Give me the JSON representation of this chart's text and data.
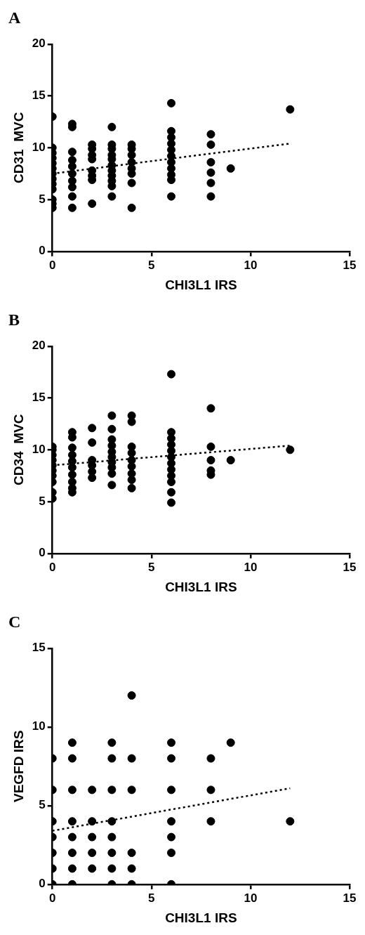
{
  "chart_data": [
    {
      "type": "scatter",
      "title": "A",
      "xlabel": "CHI3L1 IRS",
      "ylabel": "CD31  MVC",
      "xlim": [
        0,
        15
      ],
      "xticks": [
        0,
        5,
        10,
        15
      ],
      "ylim": [
        0,
        20
      ],
      "yticks": [
        0,
        5,
        10,
        15,
        20
      ],
      "grid": false,
      "legend": false,
      "marker": "circle",
      "series": [
        {
          "type": "scatter",
          "color": "#000000",
          "x": [
            0,
            0,
            0,
            0,
            0,
            0,
            0,
            0,
            0,
            0,
            0,
            0,
            0,
            1,
            1,
            1,
            1,
            1,
            1,
            1,
            1,
            1,
            1,
            2,
            2,
            2,
            2,
            2,
            2,
            2,
            2,
            3,
            3,
            3,
            3,
            3,
            3,
            3,
            3,
            3,
            3,
            3,
            4,
            4,
            4,
            4,
            4,
            4,
            4,
            4,
            6,
            6,
            6,
            6,
            6,
            6,
            6,
            6,
            6,
            6,
            6,
            8,
            8,
            8,
            8,
            8,
            8,
            9,
            12
          ],
          "values": [
            4.2,
            4.6,
            5,
            6,
            6.5,
            7,
            7.5,
            8,
            8.5,
            9,
            9.5,
            10,
            13,
            4.2,
            5.3,
            6.2,
            6.8,
            7.5,
            8.2,
            8.8,
            9.6,
            12,
            12.3,
            4.6,
            6.9,
            7.3,
            7.8,
            8.9,
            9.3,
            9.9,
            10.3,
            5.3,
            6.3,
            6.8,
            7.3,
            7.8,
            8.3,
            8.9,
            9.3,
            9.9,
            10.3,
            12,
            4.2,
            6.6,
            7.5,
            8,
            8.6,
            9.3,
            9.9,
            10.3,
            5.3,
            6.9,
            7.4,
            8,
            8.6,
            9.2,
            9.8,
            10.4,
            11,
            11.6,
            14.3,
            5.3,
            6.6,
            7.6,
            8.6,
            10.3,
            11.3,
            8,
            13.7
          ]
        },
        {
          "type": "line",
          "color": "#000000",
          "line_style": "dotted",
          "marker": "none",
          "x": [
            0,
            12
          ],
          "values": [
            7.5,
            10.4
          ]
        }
      ]
    },
    {
      "type": "scatter",
      "title": "B",
      "xlabel": "CHI3L1 IRS",
      "ylabel": "CD34  MVC",
      "xlim": [
        0,
        15
      ],
      "xticks": [
        0,
        5,
        10,
        15
      ],
      "ylim": [
        0,
        20
      ],
      "yticks": [
        0,
        5,
        10,
        15,
        20
      ],
      "grid": false,
      "legend": false,
      "marker": "circle",
      "series": [
        {
          "type": "scatter",
          "color": "#000000",
          "x": [
            0,
            0,
            0,
            0,
            0,
            0,
            0,
            0,
            0,
            0,
            1,
            1,
            1,
            1,
            1,
            1,
            1,
            1,
            1,
            1,
            2,
            2,
            2,
            2,
            2,
            2,
            3,
            3,
            3,
            3,
            3,
            3,
            3,
            3,
            3,
            3,
            4,
            4,
            4,
            4,
            4,
            4,
            4,
            4,
            4,
            6,
            6,
            6,
            6,
            6,
            6,
            6,
            6,
            6,
            6,
            6,
            6,
            8,
            8,
            8,
            8,
            8,
            9,
            12
          ],
          "values": [
            5.3,
            5.9,
            6.9,
            7.5,
            8,
            8.5,
            9,
            9.5,
            10,
            10.3,
            5.9,
            6.3,
            6.9,
            7.6,
            8.3,
            8.9,
            9.5,
            10.2,
            11.2,
            11.7,
            7.3,
            7.9,
            8.5,
            9,
            10.7,
            12.1,
            6.6,
            7.7,
            8.3,
            8.8,
            9.3,
            9.8,
            10.4,
            11,
            12,
            13.3,
            6.3,
            7.1,
            7.7,
            8.4,
            9,
            9.7,
            10.3,
            12.7,
            13.3,
            4.9,
            5.9,
            6.9,
            7.5,
            8.1,
            8.7,
            9.3,
            9.9,
            10.5,
            11.1,
            11.7,
            17.3,
            7.6,
            8,
            9,
            10.3,
            14,
            9,
            10
          ]
        },
        {
          "type": "line",
          "color": "#000000",
          "line_style": "dotted",
          "marker": "none",
          "x": [
            0,
            12
          ],
          "values": [
            8.5,
            10.4
          ]
        }
      ]
    },
    {
      "type": "scatter",
      "title": "C",
      "xlabel": "CHI3L1 IRS",
      "ylabel": "VEGFD IRS",
      "xlim": [
        0,
        15
      ],
      "xticks": [
        0,
        5,
        10,
        15
      ],
      "ylim": [
        0,
        15
      ],
      "yticks": [
        0,
        5,
        10,
        15
      ],
      "grid": false,
      "legend": false,
      "marker": "circle",
      "series": [
        {
          "type": "scatter",
          "color": "#000000",
          "x": [
            0,
            0,
            0,
            0,
            0,
            0,
            0,
            1,
            1,
            1,
            1,
            1,
            1,
            1,
            1,
            2,
            2,
            2,
            2,
            2,
            3,
            3,
            3,
            3,
            3,
            3,
            3,
            3,
            4,
            4,
            4,
            4,
            4,
            4,
            6,
            6,
            6,
            6,
            6,
            6,
            6,
            8,
            8,
            8,
            9,
            12
          ],
          "values": [
            0,
            1,
            2,
            3,
            4,
            6,
            8,
            0,
            1,
            2,
            3,
            4,
            6,
            8,
            9,
            1,
            2,
            3,
            4,
            6,
            0,
            1,
            2,
            3,
            4,
            6,
            8,
            9,
            0,
            1,
            2,
            6,
            8,
            12,
            0,
            2,
            3,
            4,
            6,
            8,
            9,
            4,
            6,
            8,
            9,
            4
          ]
        },
        {
          "type": "line",
          "color": "#000000",
          "line_style": "dotted",
          "marker": "none",
          "x": [
            0,
            12
          ],
          "values": [
            3.4,
            6.1
          ]
        }
      ]
    }
  ]
}
